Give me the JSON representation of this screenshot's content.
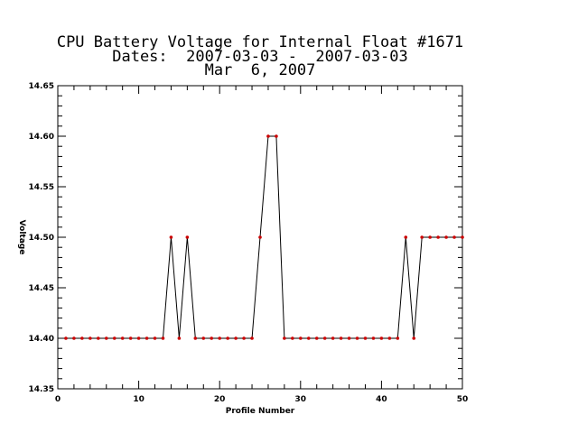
{
  "chart_data": {
    "type": "line",
    "title_lines": [
      "CPU Battery Voltage for Internal Float #1671",
      "Dates:  2007-03-03 -  2007-03-03",
      "Mar  6, 2007"
    ],
    "xlabel": "Profile Number",
    "ylabel": "Voltage",
    "xlim": [
      0,
      50
    ],
    "ylim": [
      14.35,
      14.65
    ],
    "xticks": [
      0,
      10,
      20,
      30,
      40,
      50
    ],
    "yticks": [
      "14.35",
      "14.40",
      "14.45",
      "14.50",
      "14.55",
      "14.60",
      "14.65"
    ],
    "grid": false,
    "line_color": "#000000",
    "marker_color": "#cc0000",
    "series": [
      {
        "x": [
          1,
          2,
          3,
          4,
          5,
          6,
          7,
          8,
          9,
          10,
          11,
          12,
          13,
          14,
          15,
          16,
          17,
          18,
          19,
          20,
          21,
          22,
          23,
          24,
          25,
          26,
          27,
          28,
          29,
          30,
          31,
          32,
          33,
          34,
          35,
          36,
          37,
          38,
          39,
          40,
          41,
          42,
          43,
          44,
          45,
          46,
          47,
          48,
          49,
          50
        ],
        "y": [
          14.4,
          14.4,
          14.4,
          14.4,
          14.4,
          14.4,
          14.4,
          14.4,
          14.4,
          14.4,
          14.4,
          14.4,
          14.4,
          14.5,
          14.4,
          14.5,
          14.4,
          14.4,
          14.4,
          14.4,
          14.4,
          14.4,
          14.4,
          14.4,
          14.5,
          14.6,
          14.6,
          14.4,
          14.4,
          14.4,
          14.4,
          14.4,
          14.4,
          14.4,
          14.4,
          14.4,
          14.4,
          14.4,
          14.4,
          14.4,
          14.4,
          14.4,
          14.5,
          14.4,
          14.5,
          14.5,
          14.5,
          14.5,
          14.5,
          14.5
        ]
      }
    ]
  }
}
